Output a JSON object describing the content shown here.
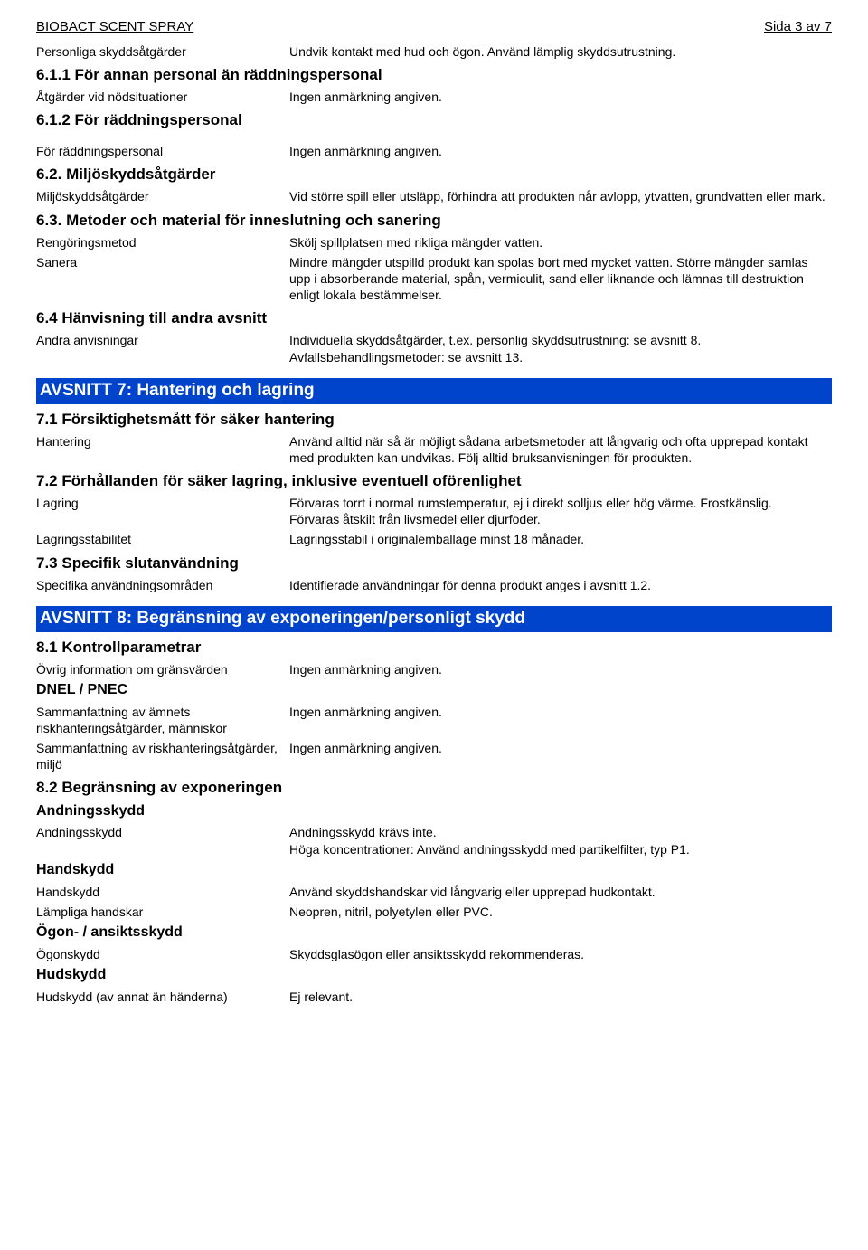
{
  "header": {
    "product": "BIOBACT SCENT SPRAY",
    "page": "Sida 3 av 7"
  },
  "s6": {
    "personliga_label": "Personliga skyddsåtgärder",
    "personliga_value": "Undvik kontakt med hud och ögon. Använd lämplig skyddsutrustning.",
    "h611": "6.1.1 För annan personal än räddningspersonal",
    "atgarder_label": "Åtgärder vid nödsituationer",
    "atgarder_value": "Ingen anmärkning angiven.",
    "h612": "6.1.2 För räddningspersonal",
    "raddning_label": "För räddningspersonal",
    "raddning_value": "Ingen anmärkning angiven.",
    "h62": "6.2. Miljöskyddsåtgärder",
    "miljo_label": "Miljöskyddsåtgärder",
    "miljo_value": "Vid större spill eller utsläpp, förhindra att produkten når avlopp, ytvatten, grundvatten eller mark.",
    "h63": "6.3. Metoder och material för inneslutning och sanering",
    "rengoring_label": "Rengöringsmetod",
    "rengoring_value": "Skölj spillplatsen med rikliga mängder vatten.",
    "sanera_label": "Sanera",
    "sanera_value": "Mindre mängder utspilld produkt kan spolas bort med mycket vatten. Större mängder samlas upp i absorberande material, spån, vermiculit, sand eller liknande och lämnas till destruktion enligt lokala bestämmelser.",
    "h64": "6.4 Hänvisning till andra avsnitt",
    "andra_label": "Andra anvisningar",
    "andra_value": "Individuella skyddsåtgärder, t.ex. personlig skyddsutrustning: se avsnitt 8. Avfallsbehandlingsmetoder: se avsnitt 13."
  },
  "s7": {
    "title": "AVSNITT 7: Hantering och lagring",
    "h71": "7.1 Försiktighetsmått för säker hantering",
    "hantering_label": "Hantering",
    "hantering_value": "Använd alltid när så är möjligt sådana arbetsmetoder att långvarig och ofta upprepad kontakt med produkten kan undvikas. Följ alltid bruksanvisningen för produkten.",
    "h72": "7.2 Förhållanden för säker lagring, inklusive eventuell oförenlighet",
    "lagring_label": "Lagring",
    "lagring_value": "Förvaras torrt i normal rumstemperatur, ej i direkt solljus eller hög värme. Frostkänslig.\nFörvaras åtskilt från livsmedel eller djurfoder.",
    "lagringsstab_label": "Lagringsstabilitet",
    "lagringsstab_value": "Lagringsstabil i originalemballage minst 18 månader.",
    "h73": "7.3 Specifik slutanvändning",
    "specifika_label": "Specifika användningsområden",
    "specifika_value": "Identifierade användningar för denna produkt anges i avsnitt 1.2."
  },
  "s8": {
    "title": "AVSNITT 8: Begränsning av exponeringen/personligt skydd",
    "h81": "8.1 Kontrollparametrar",
    "ovrig_label": "Övrig information om gränsvärden",
    "ovrig_value": "Ingen anmärkning angiven.",
    "dnel_title": "DNEL / PNEC",
    "samman1_label": "Sammanfattning av ämnets riskhanteringsåtgärder, människor",
    "samman1_value": "Ingen anmärkning angiven.",
    "samman2_label": "Sammanfattning av riskhanteringsåtgärder, miljö",
    "samman2_value": "Ingen anmärkning angiven.",
    "h82": "8.2 Begränsning av exponeringen",
    "andning_title": "Andningsskydd",
    "andning_label": "Andningsskydd",
    "andning_value": "Andningsskydd krävs inte.\nHöga koncentrationer: Använd andningsskydd med partikelfilter, typ P1.",
    "handskydd_title": "Handskydd",
    "handskydd_label": "Handskydd",
    "handskydd_value": "Använd skyddshandskar vid långvarig eller upprepad hudkontakt.",
    "lampliga_label": "Lämpliga handskar",
    "lampliga_value": "Neopren, nitril, polyetylen eller PVC.",
    "ogon_title": "Ögon- / ansiktsskydd",
    "ogonskydd_label": "Ögonskydd",
    "ogonskydd_value": "Skyddsglasögon eller ansiktsskydd rekommenderas.",
    "hudskydd_title": "Hudskydd",
    "hudskydd_label": "Hudskydd (av annat än händerna)",
    "hudskydd_value": "Ej relevant."
  }
}
